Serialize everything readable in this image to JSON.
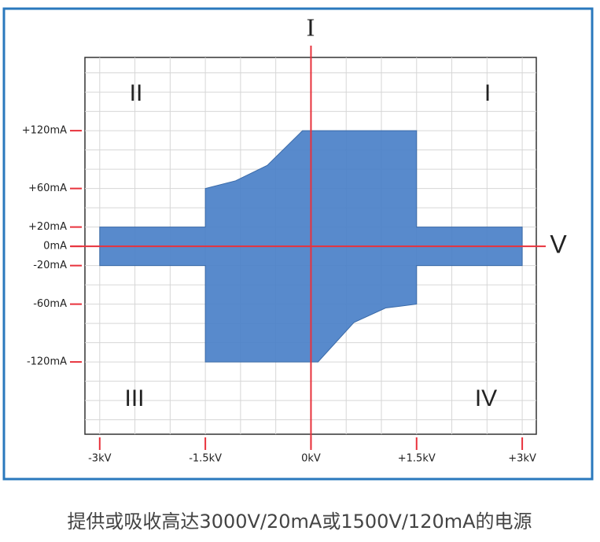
{
  "chart_data": {
    "type": "region",
    "x_axis_label": "V",
    "y_axis_label": "I",
    "quadrant_labels": [
      "I",
      "II",
      "III",
      "IV"
    ],
    "caption": "提供或吸收高达3000V/20mA或1500V/120mA的电源",
    "x": [
      -3,
      -1.5,
      -1.5,
      -1.07,
      -0.62,
      -0.12,
      1.5,
      1.5,
      3,
      3,
      1.5,
      1.5,
      1.06,
      0.61,
      0.1,
      -1.5,
      -1.5,
      -3
    ],
    "y": [
      20,
      20,
      60,
      68,
      84,
      120,
      120,
      20,
      20,
      -20,
      -20,
      -60,
      -64,
      -79,
      -120,
      -120,
      -20,
      -20
    ],
    "color": "#4a80c8",
    "xlim": [
      -3.21,
      3.2
    ],
    "ylim": [
      -195,
      196
    ],
    "xticks": [
      {
        "value": -3,
        "label": "-3kV"
      },
      {
        "value": -1.5,
        "label": "-1.5kV"
      },
      {
        "value": 0,
        "label": "0kV"
      },
      {
        "value": 1.5,
        "label": "+1.5kV"
      },
      {
        "value": 3,
        "label": "+3kV"
      }
    ],
    "yticks": [
      {
        "value": 120,
        "label": "+120mA"
      },
      {
        "value": 60,
        "label": "+60mA"
      },
      {
        "value": 20,
        "label": "+20mA"
      },
      {
        "value": 0,
        "label": "0mA"
      },
      {
        "value": -20,
        "label": "-20mA"
      },
      {
        "value": -60,
        "label": "-60mA"
      },
      {
        "value": -120,
        "label": "-120mA"
      }
    ],
    "x_gridlines": [
      -3,
      -2.5,
      -2,
      -1.5,
      -1,
      -0.5,
      0,
      0.5,
      1,
      1.5,
      2,
      2.5,
      3
    ],
    "y_gridlines": [
      -180,
      -160,
      -140,
      -120,
      -100,
      -80,
      -60,
      -40,
      -20,
      0,
      20,
      40,
      60,
      80,
      100,
      120,
      140,
      160,
      180
    ],
    "grid": true,
    "axis_color": "#e8323c"
  }
}
